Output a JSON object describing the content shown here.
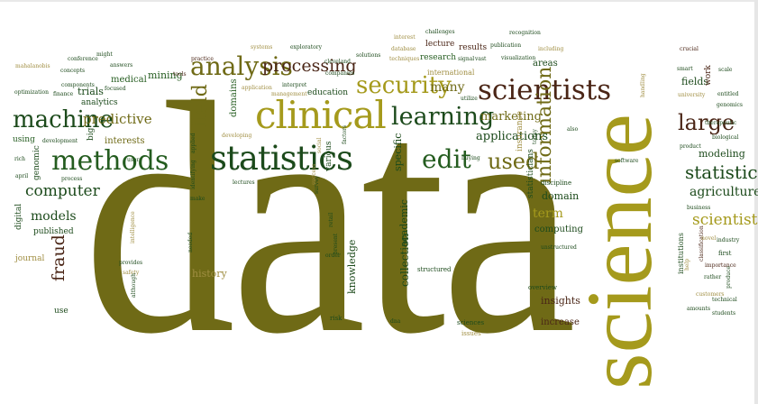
{
  "words": {
    "data": "data",
    "science": "science",
    "clinical": "clinical",
    "statistics": "statistics",
    "analysis": "analysis",
    "processing": "processing",
    "security": "security",
    "scientists": "scientists",
    "learning": "learning",
    "machine": "machine",
    "methods": "methods",
    "edit": "edit",
    "used": "used",
    "information": "information",
    "large": "large",
    "statistical": "statistical",
    "agriculture": "agriculture",
    "scientist": "scientist",
    "computer": "computer",
    "models": "models",
    "fraud": "fraud",
    "predictive": "predictive",
    "field": "field",
    "applications": "applications",
    "marketing": "marketing",
    "many": "many",
    "term": "term",
    "domain": "domain",
    "computing": "computing",
    "insights": "insights",
    "increase": "increase",
    "history": "history",
    "collection": "collection",
    "knowledge": "knowledge",
    "academic": "academic",
    "specific": "specific",
    "mining": "mining",
    "trials": "trials",
    "analytics": "analytics",
    "medical": "medical",
    "interests": "interests",
    "published": "published",
    "journal": "journal",
    "use": "use",
    "modeling": "modeling",
    "fields": "fields",
    "areas": "areas",
    "research": "research",
    "education": "education",
    "results": "results",
    "lecture": "lecture",
    "international": "international",
    "domains": "domains",
    "digital": "digital",
    "genomic": "genomic",
    "big": "big",
    "using": "using",
    "work": "work",
    "insurance": "insurance",
    "statisticians": "statisticians",
    "various": "various",
    "overview": "overview",
    "sciences": "sciences",
    "issues": "issues",
    "risk": "risk",
    "structured": "structured",
    "unstructured": "unstructured",
    "discipline": "discipline",
    "first": "first",
    "industry": "industry",
    "technical": "technical",
    "students": "students",
    "customers": "customers",
    "business": "business",
    "institutions": "institutions",
    "importance": "importance",
    "rather": "rather",
    "amounts": "amounts",
    "produce": "produce",
    "classification": "classification",
    "novel": "novel",
    "help": "help",
    "scale": "scale",
    "smart": "smart",
    "crucial": "crucial",
    "entitled": "entitled",
    "genomics": "genomics",
    "biological": "biological",
    "university": "university",
    "handling": "handling",
    "product": "product",
    "therapeutic": "therapeutic",
    "software": "software",
    "buying": "buying",
    "utilize": "utilize",
    "signal": "signal",
    "vast": "vast",
    "visualization": "visualization",
    "including": "including",
    "publication": "publication",
    "recognition": "recognition",
    "challenges": "challenges",
    "interest": "interest",
    "database": "database",
    "techniques": "techniques",
    "solutions": "solutions",
    "cleveland": "cleveland",
    "companies": "companies",
    "exploratory": "exploratory",
    "interpret": "interpret",
    "management": "management",
    "systems": "systems",
    "application": "application",
    "practice": "practice",
    "tools": "tools",
    "focused": "focused",
    "finance": "finance",
    "components": "components",
    "conference": "conference",
    "answers": "answers",
    "might": "might",
    "optimization": "optimization",
    "concepts": "concepts",
    "mahalanobis": "mahalanobis",
    "development": "development",
    "rich": "rich",
    "april": "april",
    "process": "process",
    "user": "user",
    "applied": "applied",
    "identifying": "identifying",
    "developing": "developing",
    "lectures": "lectures",
    "social": "social",
    "factors": "factors",
    "survey": "survey",
    "success": "success",
    "make": "make",
    "needed": "needed",
    "intelligence": "intelligence",
    "provides": "provides",
    "safety": "safety",
    "although": "although",
    "order": "order",
    "present": "present",
    "retail": "retail",
    "dna": "dna",
    "also": "also",
    "today": "today"
  },
  "colors": {
    "olive": "#6f6a16",
    "mustard": "#a59a1c",
    "forest": "#1c4a1b",
    "green": "#245c1f",
    "brown": "#4a2516",
    "tan": "#a08e42",
    "khaki": "#c2b55c"
  }
}
